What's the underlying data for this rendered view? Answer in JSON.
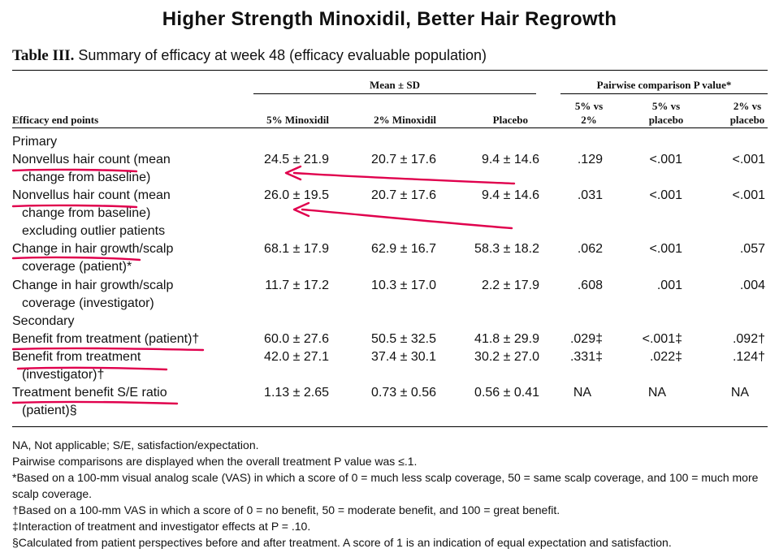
{
  "headline": "Higher Strength Minoxidil, Better Hair Regrowth",
  "caption": {
    "label": "Table III.",
    "text": "Summary of efficacy at week 48 (efficacy evaluable population)"
  },
  "header": {
    "group_mean": "Mean ± SD",
    "group_pairwise": "Pairwise comparison P value*",
    "col_endpoints": "Efficacy end points",
    "col_5pct": "5% Minoxidil",
    "col_2pct": "2% Minoxidil",
    "col_placebo": "Placebo",
    "col_p1_line1": "5% vs",
    "col_p1_line2": "2%",
    "col_p2_line1": "5% vs",
    "col_p2_line2": "placebo",
    "col_p3_line1": "2% vs",
    "col_p3_line2": "placebo"
  },
  "sections": {
    "primary": "Primary",
    "secondary": "Secondary"
  },
  "rows": [
    {
      "label1": "Nonvellus hair count (mean",
      "label2": "change from baseline)",
      "label3": "",
      "v5": "24.5 ± 21.9",
      "v2": "20.7 ± 17.6",
      "vp": "9.4 ± 14.6",
      "p1": ".129",
      "p2": "<.001",
      "p3": "<.001"
    },
    {
      "label1": "Nonvellus hair count (mean",
      "label2": "change from baseline)",
      "label3": "excluding outlier patients",
      "v5": "26.0 ± 19.5",
      "v2": "20.7 ± 17.6",
      "vp": "9.4 ± 14.6",
      "p1": ".031",
      "p2": "<.001",
      "p3": "<.001"
    },
    {
      "label1": "Change in hair growth/scalp",
      "label2": "coverage (patient)*",
      "label3": "",
      "v5": "68.1 ± 17.9",
      "v2": "62.9 ± 16.7",
      "vp": "58.3 ± 18.2",
      "p1": ".062",
      "p2": "<.001",
      "p3": ".057"
    },
    {
      "label1": "Change in hair growth/scalp",
      "label2": "coverage (investigator)",
      "label3": "",
      "v5": "11.7 ± 17.2",
      "v2": "10.3 ± 17.0",
      "vp": "2.2 ± 17.9",
      "p1": ".608",
      "p2": ".001",
      "p3": ".004"
    },
    {
      "label1": "Benefit from treatment (patient)†",
      "label2": "",
      "label3": "",
      "v5": "60.0 ± 27.6",
      "v2": "50.5 ± 32.5",
      "vp": "41.8 ± 29.9",
      "p1": ".029‡",
      "p2": "<.001‡",
      "p3": ".092†"
    },
    {
      "label1": "Benefit from treatment",
      "label2": "(investigator)†",
      "label3": "",
      "v5": "42.0 ± 27.1",
      "v2": "37.4 ± 30.1",
      "vp": "30.2 ± 27.0",
      "p1": ".331‡",
      "p2": ".022‡",
      "p3": ".124†"
    },
    {
      "label1": "Treatment benefit S/E ratio",
      "label2": "(patient)§",
      "label3": "",
      "v5": "1.13 ± 2.65",
      "v2": "0.73 ± 0.56",
      "vp": "0.56 ± 0.41",
      "p1": "NA",
      "p2": "NA",
      "p3": "NA"
    }
  ],
  "footnotes": [
    "NA, Not applicable; S/E, satisfaction/expectation.",
    "Pairwise comparisons are displayed when the overall treatment P value was ≤.1.",
    "*Based on a 100-mm visual analog scale (VAS) in which a score of 0 = much less scalp coverage, 50 = same scalp coverage, and 100 = much more scalp coverage.",
    "†Based on a 100-mm VAS in which a score of 0 = no benefit, 50 = moderate benefit, and 100 = great benefit.",
    "‡Interaction of treatment and investigator effects at P = .10.",
    "§Calculated from patient perspectives before and after treatment. A score of 1 is an indication of equal expectation and satisfaction."
  ],
  "annotation_color": "#e0004d"
}
